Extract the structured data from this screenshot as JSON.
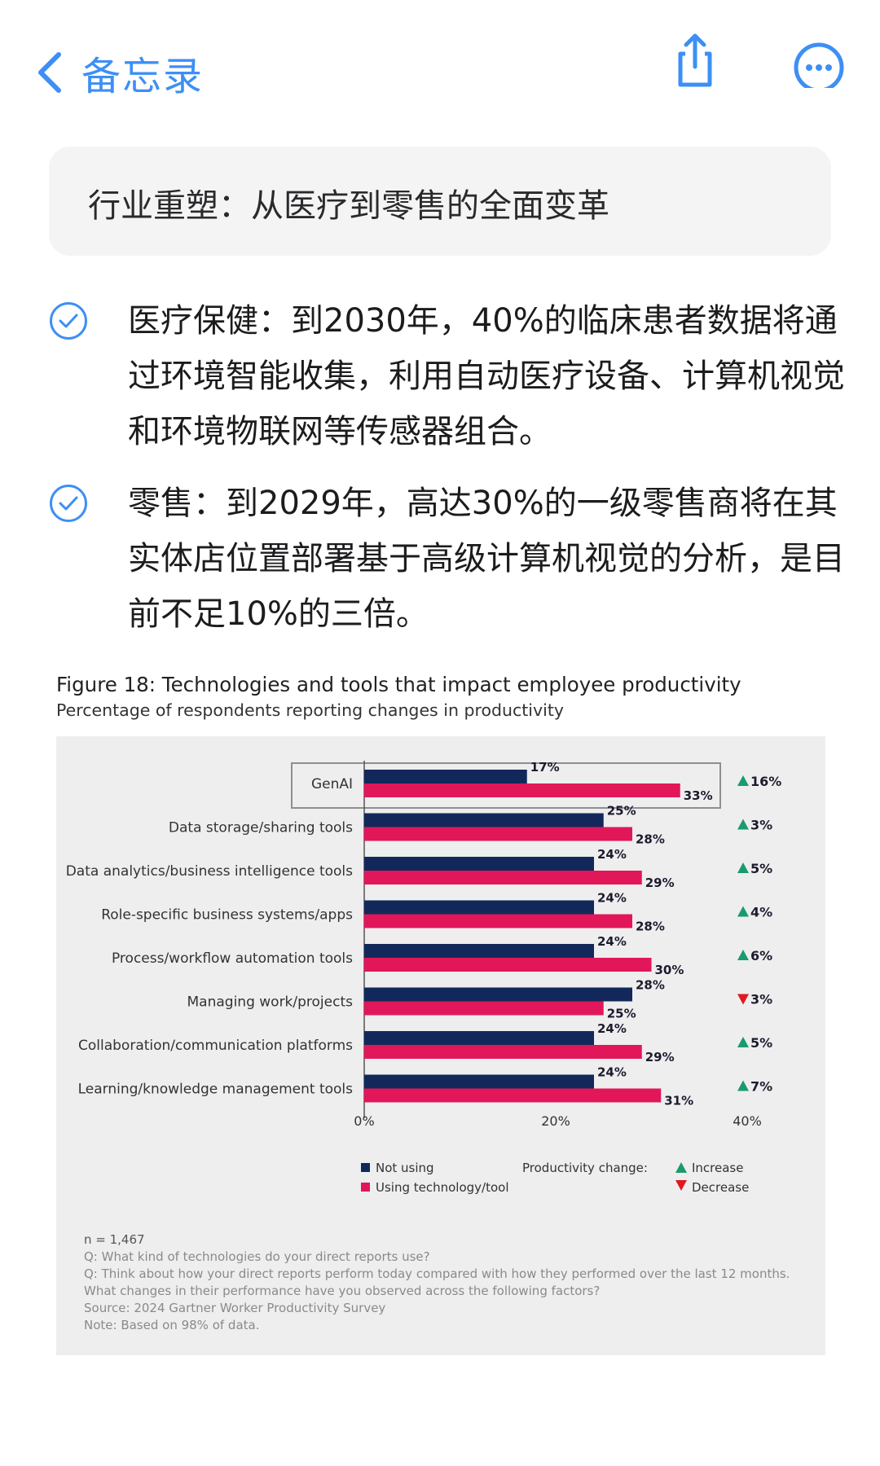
{
  "nav": {
    "back_label": "备忘录",
    "back_icon": "chevron-left-icon",
    "share_icon": "share-icon",
    "more_icon": "more-icon",
    "accent": "#3d8ff5"
  },
  "note": {
    "heading": "行业重塑：从医疗到零售的全面变革",
    "items": [
      {
        "checked": true,
        "text": "医疗保健：到2030年，40%的临床患者数据将通过环境智能收集，利用自动医疗设备、计算机视觉和环境物联网等传感器组合。"
      },
      {
        "checked": true,
        "text": "零售：到2029年，高达30%的一级零售商将在其实体店位置部署基于高级计算机视觉的分析，是目前不足10%的三倍。"
      }
    ]
  },
  "figure": {
    "title": "Figure 18: Technologies and tools that impact employee productivity",
    "subtitle": "Percentage of respondents reporting changes in productivity",
    "notes": [
      "n = 1,467",
      "Q: What kind of technologies do your direct reports use?",
      "Q: Think about how your direct reports perform today compared with how they performed over the last 12 months.",
      "What changes in their performance have you observed across the following factors?",
      "Source: 2024 Gartner Worker Productivity Survey",
      "Note: Based on 98% of data."
    ]
  },
  "chart_data": {
    "type": "bar",
    "orientation": "horizontal",
    "categories": [
      "GenAI",
      "Data storage/sharing tools",
      "Data analytics/business intelligence tools",
      "Role-specific business systems/apps",
      "Process/workflow automation tools",
      "Managing work/projects",
      "Collaboration/communication platforms",
      "Learning/knowledge management tools"
    ],
    "series": [
      {
        "name": "Not using",
        "color": "#13285a",
        "values": [
          17,
          25,
          24,
          24,
          24,
          28,
          24,
          24
        ],
        "labels": [
          "17%",
          "25%",
          "24%",
          "24%",
          "24%",
          "28%",
          "24%",
          "24%"
        ]
      },
      {
        "name": "Using technology/tool",
        "color": "#e1175a",
        "values": [
          33,
          28,
          29,
          28,
          30,
          25,
          29,
          31
        ],
        "labels": [
          "33%",
          "28%",
          "29%",
          "28%",
          "30%",
          "25%",
          "29%",
          "31%"
        ]
      }
    ],
    "change": {
      "direction": [
        "up",
        "up",
        "up",
        "up",
        "up",
        "down",
        "up",
        "up"
      ],
      "labels": [
        "16%",
        "3%",
        "5%",
        "4%",
        "6%",
        "3%",
        "5%",
        "7%"
      ],
      "up_color": "#1a9b6c",
      "down_color": "#e0191f"
    },
    "xlim": [
      0,
      40
    ],
    "ticks": [
      "0%",
      "20%",
      "40%"
    ],
    "tick_values": [
      0,
      20,
      40
    ],
    "highlighted_category": "GenAI",
    "legend": {
      "change_title": "Productivity change:",
      "increase": "Increase",
      "decrease": "Decrease",
      "placement": "bottom"
    }
  }
}
